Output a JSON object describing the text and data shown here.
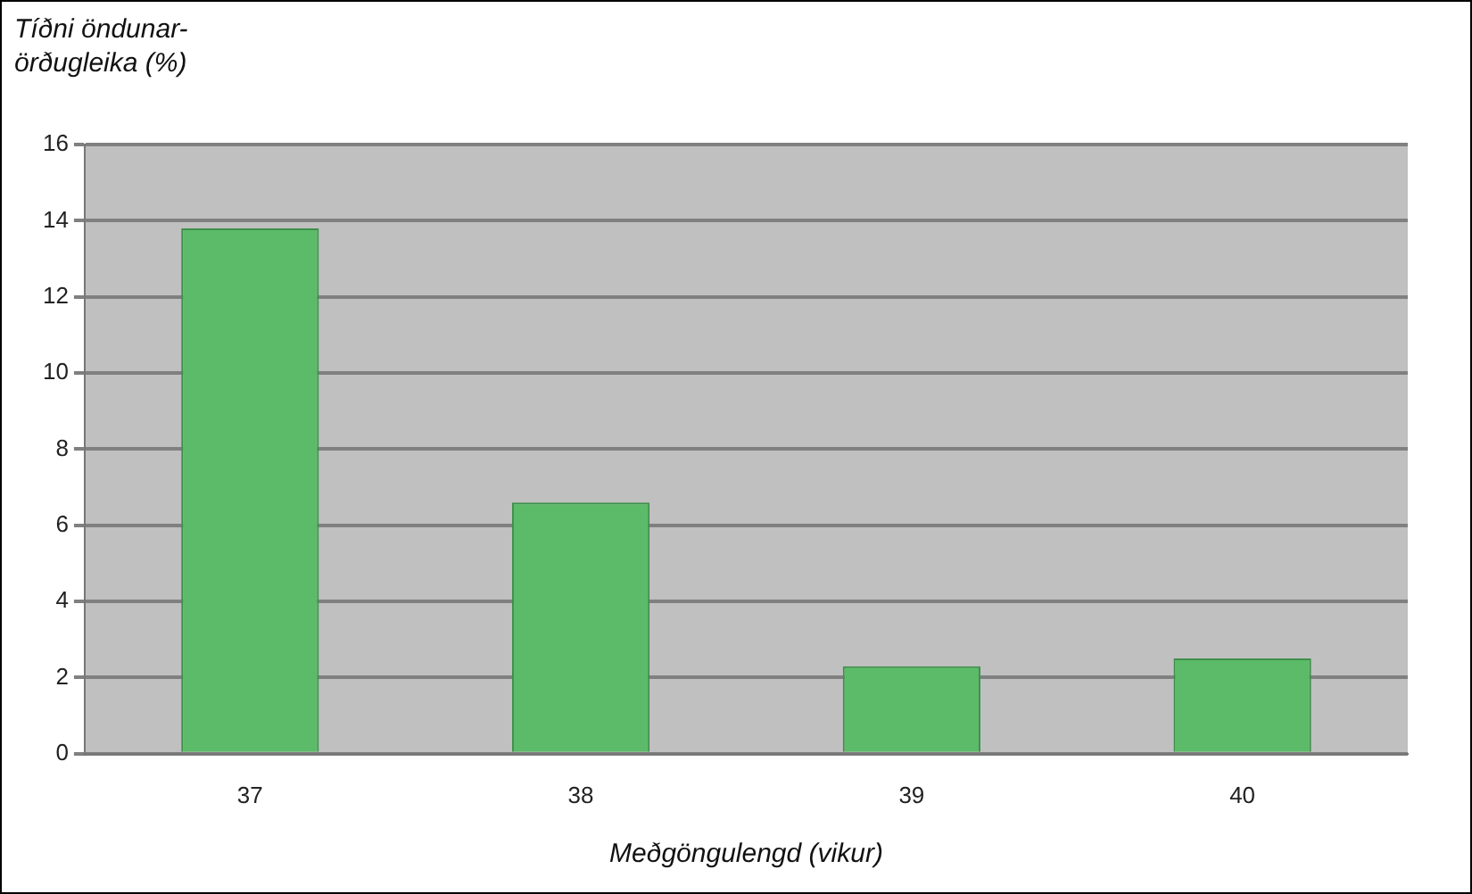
{
  "chart_data": {
    "type": "bar",
    "ylabel": "Tíðni öndunar-örðugleika (%)",
    "xlabel": "Meðgöngulengd (vikur)",
    "categories": [
      "37",
      "38",
      "39",
      "40"
    ],
    "values": [
      13.8,
      6.6,
      2.3,
      2.5
    ],
    "color": "#5cbb68",
    "ylim": [
      0,
      16
    ],
    "yticks": [
      0,
      2,
      4,
      6,
      8,
      10,
      12,
      14,
      16
    ],
    "grid": "y",
    "legend": false
  }
}
